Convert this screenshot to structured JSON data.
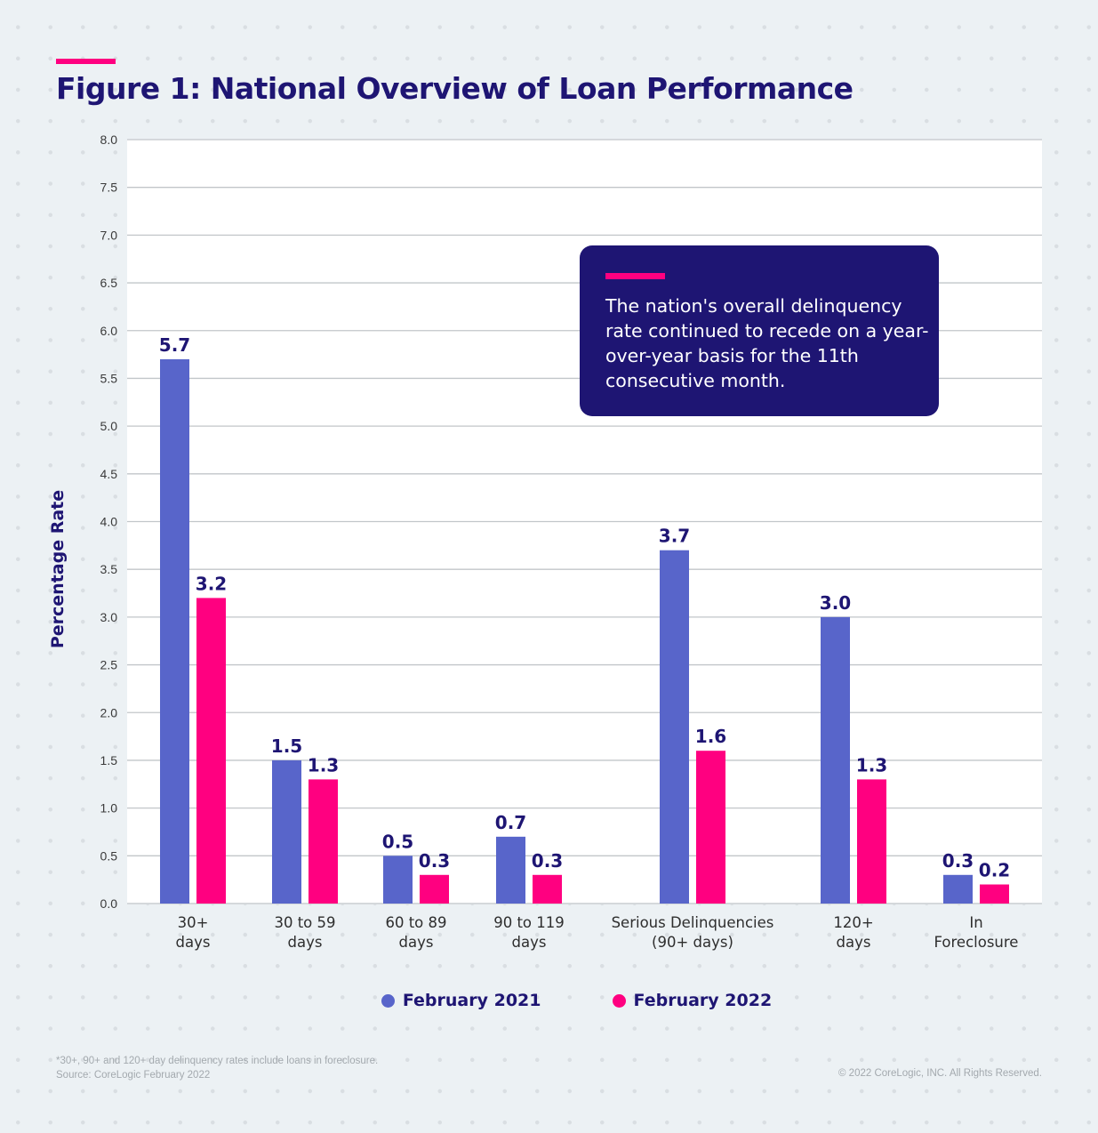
{
  "header": {
    "title": "Figure 1: National Overview of Loan Performance"
  },
  "callout": {
    "text": "The nation's overall delinquency rate continued to recede on a year-over-year basis for the 11th consecutive month."
  },
  "colors": {
    "series_2021": "#5865ca",
    "series_2022": "#ff0080",
    "title": "#1e1573",
    "accent": "#ff0080",
    "callout_bg": "#1e1573"
  },
  "footer": {
    "footnote_line1": "*30+, 90+ and 120+ day delinquency rates include loans in foreclosure.",
    "footnote_line2": "Source: CoreLogic February 2022",
    "copyright": "© 2022 CoreLogic, INC. All Rights Reserved."
  },
  "chart_data": {
    "type": "bar",
    "title": "Figure 1: National Overview of Loan Performance",
    "xlabel": "",
    "ylabel": "Percentage Rate",
    "ylim": [
      0,
      8
    ],
    "yticks": [
      "0.0",
      "0.5",
      "1.0",
      "1.5",
      "2.0",
      "2.5",
      "3.0",
      "3.5",
      "4.0",
      "4.5",
      "5.0",
      "5.5",
      "6.0",
      "6.5",
      "7.0",
      "7.5",
      "8.0"
    ],
    "grid": true,
    "legend_position": "bottom-center",
    "categories": [
      [
        "30+",
        "days"
      ],
      [
        "30 to 59",
        "days"
      ],
      [
        "60 to 89",
        "days"
      ],
      [
        "90 to 119",
        "days"
      ],
      [
        "Serious Delinquencies",
        "(90+ days)"
      ],
      [
        "120+",
        "days"
      ],
      [
        "In",
        "Foreclosure"
      ]
    ],
    "series": [
      {
        "name": "February 2021",
        "color": "#5865ca",
        "values": [
          5.7,
          1.5,
          0.5,
          0.7,
          3.7,
          3.0,
          0.3
        ],
        "labels": [
          "5.7",
          "1.5",
          "0.5",
          "0.7",
          "3.7",
          "3.0",
          "0.3"
        ]
      },
      {
        "name": "February 2022",
        "color": "#ff0080",
        "values": [
          3.2,
          1.3,
          0.3,
          0.3,
          1.6,
          1.3,
          0.2
        ],
        "labels": [
          "3.2",
          "1.3",
          "0.3",
          "0.3",
          "1.6",
          "1.3",
          "0.2"
        ]
      }
    ]
  }
}
